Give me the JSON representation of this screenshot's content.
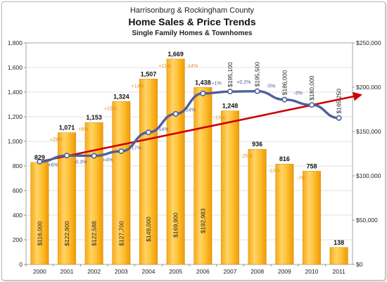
{
  "chart_data": {
    "type": "bar",
    "title": "Harrisonburg & Rockingham County",
    "subtitle": "Home Sales & Price Trends",
    "subtitle2": "Single Family Homes & Townhomes",
    "categories": [
      "2000",
      "2001",
      "2002",
      "2003",
      "2004",
      "2005",
      "2006",
      "2007",
      "2008",
      "2009",
      "2010",
      "2011"
    ],
    "series": [
      {
        "type": "bar",
        "axis": "left",
        "color": "#FFB81C",
        "values": [
          829,
          1071,
          1153,
          1324,
          1507,
          1669,
          1438,
          1248,
          936,
          816,
          758,
          138
        ],
        "labels": [
          "829",
          "1,071",
          "1,153",
          "1,324",
          "1,507",
          "1,669",
          "1,438",
          "1,248",
          "936",
          "816",
          "758",
          "138"
        ],
        "change_labels": [
          "",
          "+29%",
          "+8%",
          "+15%",
          "+14%",
          "+11%",
          "-14%",
          "-13%",
          "-25%",
          "-13%",
          "-7%",
          ""
        ]
      },
      {
        "type": "line",
        "axis": "right",
        "color": "#4F5F99",
        "values": [
          116000,
          122900,
          122588,
          127700,
          149000,
          169900,
          192983,
          195100,
          195500,
          186000,
          180000,
          165250
        ],
        "labels": [
          "$116,000",
          "$122,900",
          "$122,588",
          "$127,700",
          "$149,000",
          "$169,900",
          "$192,983",
          "$195,100",
          "$195,500",
          "$186,000",
          "$180,000",
          "$165,250"
        ],
        "change_labels": [
          "+6%",
          "-0.3%",
          "+4%",
          "+17%",
          "+14%",
          "+14%",
          "+1%",
          "+0.2%",
          "-5%",
          "-3%",
          "",
          ""
        ]
      }
    ],
    "trend_line": {
      "color": "#CC0000",
      "from": [
        2000,
        116000
      ],
      "to": [
        2011.6,
        190000
      ]
    },
    "y_left": {
      "min": 0,
      "max": 1800,
      "ticks": [
        0,
        200,
        400,
        600,
        800,
        1000,
        1200,
        1400,
        1600,
        1800
      ],
      "tick_labels": [
        "0",
        "200",
        "400",
        "600",
        "800",
        "1,000",
        "1,200",
        "1,400",
        "1,600",
        "1,800"
      ]
    },
    "y_right": {
      "min": 0,
      "max": 250000,
      "ticks": [
        0,
        50000,
        100000,
        150000,
        200000,
        250000
      ],
      "tick_labels": [
        "$0",
        "$50,000",
        "$100,000",
        "$150,000",
        "$200,000",
        "$250,000"
      ]
    },
    "grid": true,
    "legend": "none"
  }
}
